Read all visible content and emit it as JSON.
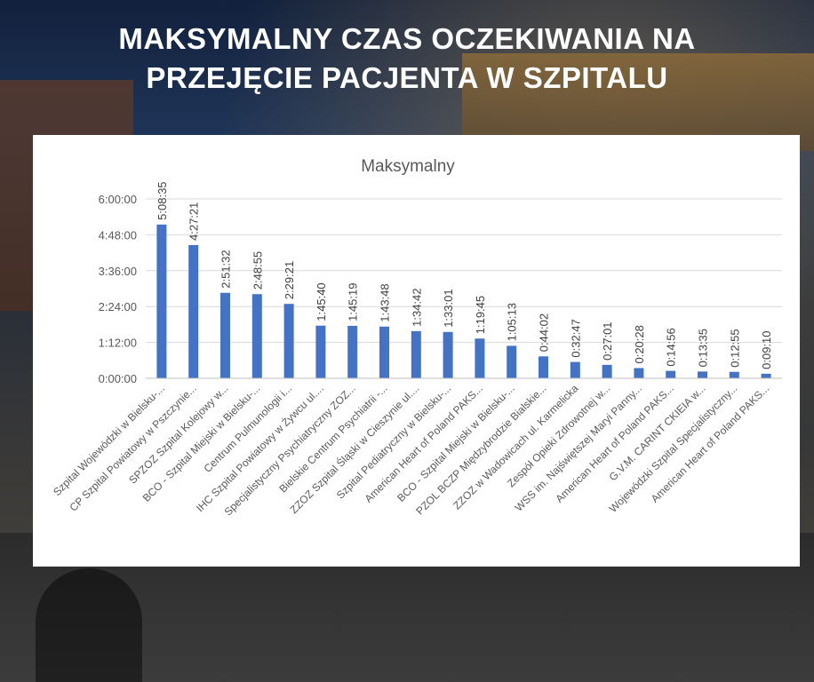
{
  "header": {
    "title_line1": "MAKSYMALNY CZAS OCZEKIWANIA NA",
    "title_line2": "PRZEJĘCIE PACJENTA W SZPITALU"
  },
  "colors": {
    "bar": "#4472C4",
    "grid": "#d9d9d9",
    "axis_text": "#595959",
    "title_text": "#ffffff"
  },
  "chart_data": {
    "type": "bar",
    "title": "Maksymalny",
    "xlabel": "",
    "ylabel": "",
    "ylim_seconds": [
      0,
      21600
    ],
    "y_ticks": [
      "0:00:00",
      "1:12:00",
      "2:24:00",
      "3:36:00",
      "4:48:00",
      "6:00:00"
    ],
    "y_tick_seconds": [
      0,
      4320,
      8640,
      12960,
      17280,
      21600
    ],
    "grid": true,
    "legend": "none",
    "categories": [
      "Szpital Wojewódzki w Bielsku-...",
      "CP Szpital Powiatowy w Pszczynie...",
      "SPZOZ Szpital Kolejowy w...",
      "BCO - Szpital Miejski w Bielsku-...",
      "Centrum Pulmunologii i...",
      "IHC Szpital Powiatowy w Żywcu ul....",
      "Specjalistyczny Psychiatryczny ZOZ...",
      "Bielskie Centrum Psychiatrii -...",
      "ZZOZ Szpital Śląski w Cieszynie ul....",
      "Szpital Pediatryczny w Bielsku-...",
      "American Heart of Poland PAKS...",
      "BCO - Szpital Miejski w Bielsku-...",
      "PZOL BCZP Międzybrodzie Bialskie...",
      "ZZOZ w Wadowicach ul. Karmelicka",
      "Zespół Opieki Zdrowotnej w...",
      "WSS im. Najświętszej Maryi Panny...",
      "American Heart of Poland PAKS...",
      "G.V.M. CARINT CKIEIA w...",
      "Wojewódzki Szpital Specjalistyczny...",
      "American Heart of Poland PAKS..."
    ],
    "labels": [
      "5:08:35",
      "4:27:21",
      "2:51:32",
      "2:48:55",
      "2:29:21",
      "1:45:40",
      "1:45:19",
      "1:43:48",
      "1:34:42",
      "1:33:01",
      "1:19:45",
      "1:05:13",
      "0:44:02",
      "0:32:47",
      "0:27:01",
      "0:20:28",
      "0:14:56",
      "0:13:35",
      "0:12:55",
      "0:09:10"
    ],
    "values_seconds": [
      18515,
      16041,
      10292,
      10135,
      8961,
      6340,
      6319,
      6228,
      5682,
      5581,
      4785,
      3913,
      2642,
      1967,
      1621,
      1228,
      896,
      815,
      775,
      550
    ]
  }
}
